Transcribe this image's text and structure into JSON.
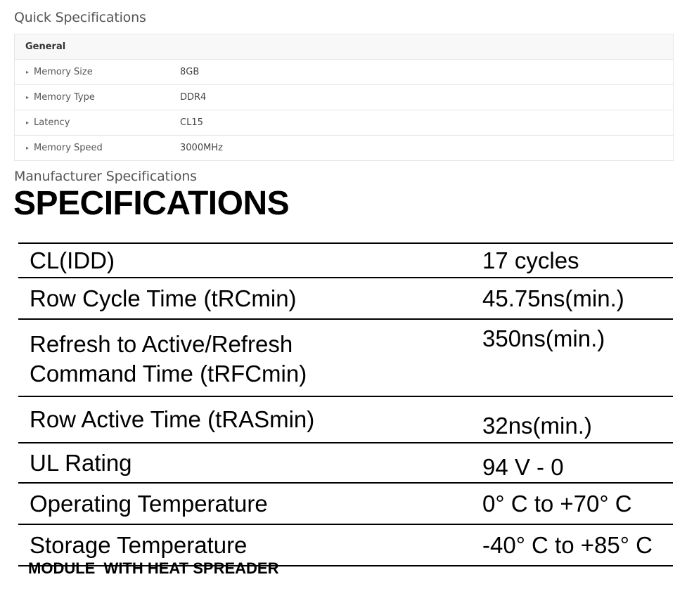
{
  "quick_specs": {
    "title": "Quick Specifications",
    "group": "General",
    "bullet_icon": "triangle-right-icon",
    "rows": [
      {
        "label": "Memory Size",
        "value": "8GB"
      },
      {
        "label": "Memory Type",
        "value": "DDR4"
      },
      {
        "label": "Latency",
        "value": "CL15"
      },
      {
        "label": "Memory Speed",
        "value": "3000MHz"
      }
    ]
  },
  "manufacturer_specs": {
    "title": "Manufacturer Specifications",
    "heading": "SPECIFICATIONS",
    "rows": [
      {
        "label": "CL(IDD)",
        "value": "17 cycles"
      },
      {
        "label": "Row Cycle Time (tRCmin)",
        "value": "45.75ns(min.)"
      },
      {
        "label_line1": "Refresh to Active/Refresh",
        "label_line2": "Command Time (tRFCmin)",
        "value": "350ns(min.)"
      },
      {
        "label": "Row Active Time (tRASmin)",
        "value": "32ns(min.)"
      },
      {
        "label": "UL Rating",
        "value": "94 V - 0"
      },
      {
        "label": "Operating Temperature",
        "value": "0° C to +70° C"
      },
      {
        "label": "Storage Temperature",
        "value": "-40° C to +85° C"
      }
    ],
    "footnote": "MODULE  WITH HEAT SPREADER"
  }
}
